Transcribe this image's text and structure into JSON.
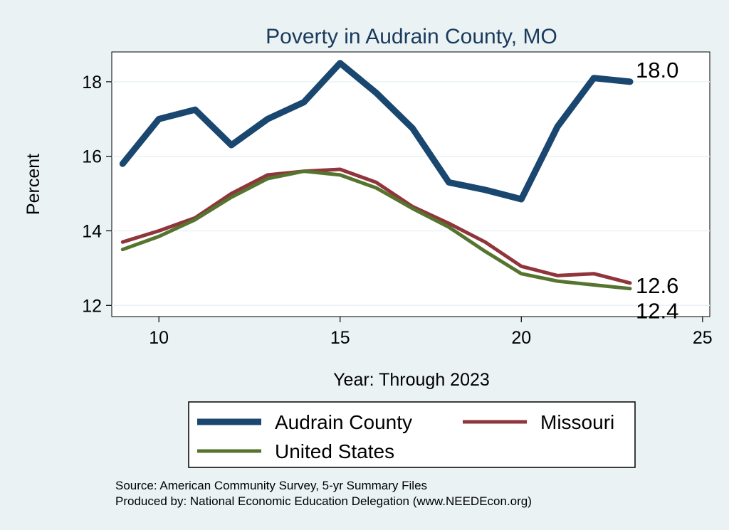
{
  "chart_data": {
    "type": "line",
    "title": "Poverty in Audrain County, MO",
    "xlabel": "Year: Through 2023",
    "ylabel": "Percent",
    "xlim": [
      8.7,
      25.2
    ],
    "ylim": [
      11.7,
      18.8
    ],
    "xticks": [
      10,
      15,
      20,
      25
    ],
    "yticks": [
      12,
      14,
      16,
      18
    ],
    "grid": true,
    "x": [
      9,
      10,
      11,
      12,
      13,
      14,
      15,
      16,
      17,
      18,
      19,
      20,
      21,
      22,
      23
    ],
    "series": [
      {
        "name": "Audrain County",
        "color": "#1a476f",
        "values": [
          15.8,
          17.0,
          17.25,
          16.3,
          17.0,
          17.45,
          18.5,
          17.7,
          16.75,
          15.3,
          15.1,
          14.85,
          16.8,
          18.1,
          18.0
        ],
        "end_label": "18.0"
      },
      {
        "name": "Missouri",
        "color": "#90353b",
        "values": [
          13.7,
          14.0,
          14.35,
          15.0,
          15.5,
          15.6,
          15.65,
          15.3,
          14.65,
          14.2,
          13.7,
          13.05,
          12.8,
          12.85,
          12.6
        ],
        "end_label": "12.6"
      },
      {
        "name": "United States",
        "color": "#55752f",
        "values": [
          13.5,
          13.85,
          14.3,
          14.9,
          15.4,
          15.6,
          15.5,
          15.15,
          14.6,
          14.1,
          13.45,
          12.85,
          12.65,
          12.55,
          12.45
        ],
        "end_label": "12.4"
      }
    ],
    "legend": {
      "placement": "bottom",
      "entries": [
        "Audrain County",
        "Missouri",
        "United States"
      ]
    }
  },
  "notes": {
    "source": "Source: American Community Survey, 5-yr Summary Files",
    "produced_by": "Produced by: National Economic Education Delegation (www.NEEDEcon.org)"
  }
}
